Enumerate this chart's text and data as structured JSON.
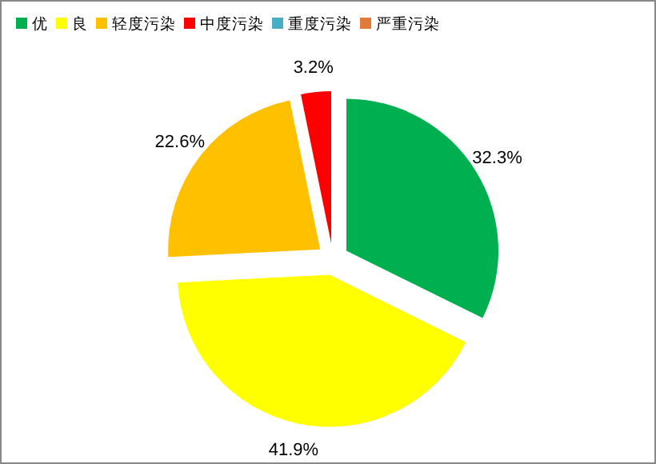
{
  "chart_data": {
    "type": "pie",
    "categories": [
      "优",
      "良",
      "轻度污染",
      "中度污染",
      "重度污染",
      "严重污染"
    ],
    "values": [
      32.3,
      41.9,
      22.6,
      3.2,
      0,
      0
    ],
    "colors": [
      "#00b050",
      "#ffff00",
      "#ffc000",
      "#ff0000",
      "#4bacc6",
      "#e07b39"
    ],
    "value_labels": [
      "32.3%",
      "41.9%",
      "22.6%",
      "3.2%",
      null,
      null
    ],
    "legend": "top left"
  }
}
